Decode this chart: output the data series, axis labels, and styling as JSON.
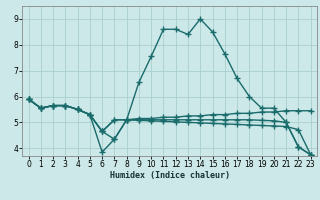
{
  "xlabel": "Humidex (Indice chaleur)",
  "xlim": [
    -0.5,
    23.5
  ],
  "ylim": [
    3.7,
    9.5
  ],
  "yticks": [
    4,
    5,
    6,
    7,
    8,
    9
  ],
  "xticks": [
    0,
    1,
    2,
    3,
    4,
    5,
    6,
    7,
    8,
    9,
    10,
    11,
    12,
    13,
    14,
    15,
    16,
    17,
    18,
    19,
    20,
    21,
    22,
    23
  ],
  "bg_color": "#cce8e8",
  "grid_color": "#aacece",
  "line_color": "#1a6b6b",
  "line_width": 1.0,
  "marker": "+",
  "marker_size": 4.0,
  "lines": [
    [
      5.9,
      5.55,
      5.65,
      5.65,
      5.5,
      5.3,
      4.65,
      4.35,
      5.1,
      6.55,
      7.55,
      8.6,
      8.6,
      8.4,
      9.0,
      8.5,
      7.65,
      6.7,
      6.0,
      5.55,
      5.55,
      5.0,
      4.05,
      3.75
    ],
    [
      5.9,
      5.55,
      5.65,
      5.65,
      5.5,
      5.3,
      4.65,
      5.1,
      5.1,
      5.15,
      5.15,
      5.2,
      5.2,
      5.25,
      5.25,
      5.3,
      5.3,
      5.35,
      5.35,
      5.4,
      5.4,
      5.45,
      5.45,
      5.45
    ],
    [
      5.9,
      5.55,
      5.65,
      5.65,
      5.5,
      5.3,
      4.65,
      5.1,
      5.1,
      5.08,
      5.06,
      5.04,
      5.02,
      5.0,
      4.98,
      4.96,
      4.94,
      4.92,
      4.9,
      4.88,
      4.86,
      4.84,
      4.72,
      3.75
    ],
    [
      5.9,
      5.55,
      5.65,
      5.65,
      5.5,
      5.3,
      3.85,
      4.35,
      5.1,
      5.1,
      5.1,
      5.1,
      5.1,
      5.1,
      5.1,
      5.1,
      5.1,
      5.1,
      5.1,
      5.08,
      5.06,
      5.0,
      4.05,
      3.75
    ]
  ]
}
